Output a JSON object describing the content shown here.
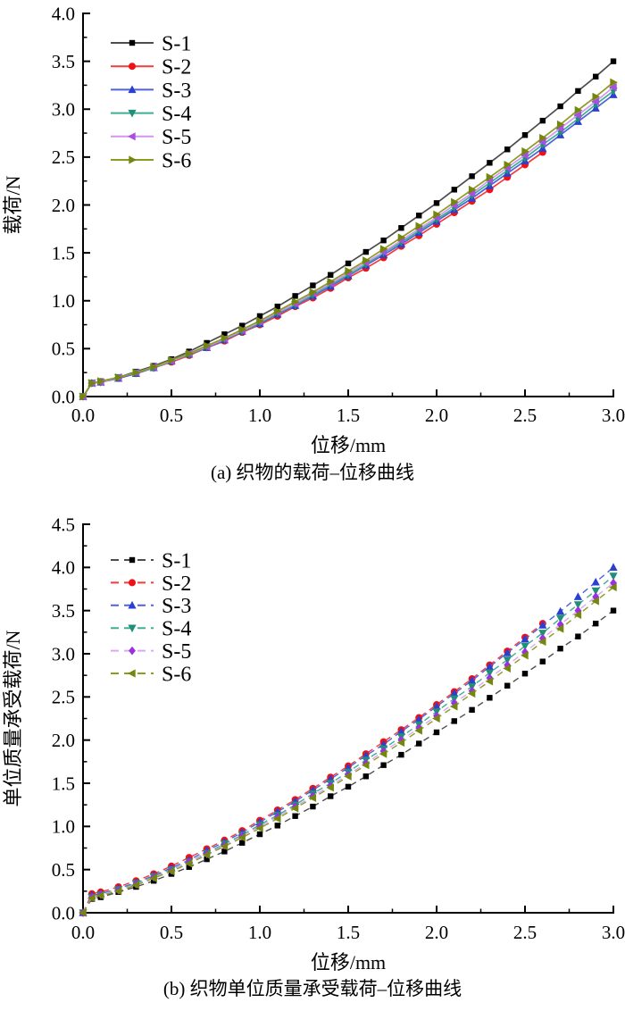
{
  "figure": {
    "background": "#ffffff"
  },
  "chart_data": [
    {
      "id": "a",
      "type": "line",
      "caption": "(a) 织物的载荷–位移曲线",
      "xlabel": "位移/mm",
      "ylabel": "载荷/N",
      "xlim": [
        0,
        3
      ],
      "ylim": [
        0,
        4
      ],
      "x_ticks": [
        0,
        0.5,
        1.0,
        1.5,
        2.0,
        2.5,
        3.0
      ],
      "x_tick_labels": [
        "0.0",
        "0.5",
        "1.0",
        "1.5",
        "2.0",
        "2.5",
        "3.0"
      ],
      "y_ticks": [
        0,
        0.5,
        1.0,
        1.5,
        2.0,
        2.5,
        3.0,
        3.5,
        4.0
      ],
      "y_tick_labels": [
        "0.0",
        "0.5",
        "1.0",
        "1.5",
        "2.0",
        "2.5",
        "3.0",
        "3.5",
        "4.0"
      ],
      "grid": false,
      "legend_position": "top-left",
      "line_style": "solid",
      "x": [
        0,
        0.05,
        0.1,
        0.2,
        0.3,
        0.4,
        0.5,
        0.6,
        0.7,
        0.8,
        0.9,
        1.0,
        1.1,
        1.2,
        1.3,
        1.4,
        1.5,
        1.6,
        1.7,
        1.8,
        1.9,
        2.0,
        2.1,
        2.2,
        2.3,
        2.4,
        2.5,
        2.6,
        2.7,
        2.8,
        2.9,
        3.0
      ],
      "series": [
        {
          "name": "S-1",
          "marker": "square",
          "line_color": "#4d4d4d",
          "marker_color": "#000000",
          "y": [
            0,
            0.14,
            0.16,
            0.2,
            0.26,
            0.32,
            0.39,
            0.47,
            0.56,
            0.65,
            0.74,
            0.84,
            0.94,
            1.05,
            1.16,
            1.27,
            1.39,
            1.51,
            1.63,
            1.76,
            1.89,
            2.02,
            2.16,
            2.3,
            2.44,
            2.58,
            2.73,
            2.88,
            3.03,
            3.19,
            3.34,
            3.5
          ]
        },
        {
          "name": "S-2",
          "marker": "circle",
          "line_color": "#f43b3b",
          "marker_color": "#ee1116",
          "y": [
            0,
            0.14,
            0.15,
            0.19,
            0.24,
            0.3,
            0.36,
            0.43,
            0.51,
            0.58,
            0.67,
            0.75,
            0.84,
            0.94,
            1.03,
            1.13,
            1.24,
            1.34,
            1.45,
            1.57,
            1.68,
            1.8,
            1.92,
            2.04,
            2.16,
            2.29,
            2.42,
            2.55
          ]
        },
        {
          "name": "S-3",
          "marker": "triangle-up",
          "line_color": "#4f62dd",
          "marker_color": "#2b3fd0",
          "y": [
            0,
            0.14,
            0.15,
            0.19,
            0.24,
            0.3,
            0.37,
            0.44,
            0.51,
            0.59,
            0.68,
            0.76,
            0.86,
            0.95,
            1.05,
            1.15,
            1.26,
            1.37,
            1.48,
            1.59,
            1.71,
            1.83,
            1.95,
            2.07,
            2.2,
            2.33,
            2.46,
            2.59,
            2.73,
            2.87,
            3.01,
            3.15
          ]
        },
        {
          "name": "S-4",
          "marker": "triangle-down",
          "line_color": "#3fae93",
          "marker_color": "#1f8f78",
          "y": [
            0,
            0.14,
            0.15,
            0.2,
            0.25,
            0.3,
            0.37,
            0.44,
            0.52,
            0.6,
            0.68,
            0.77,
            0.87,
            0.96,
            1.06,
            1.17,
            1.27,
            1.38,
            1.5,
            1.61,
            1.73,
            1.85,
            1.97,
            2.1,
            2.23,
            2.36,
            2.49,
            2.63,
            2.76,
            2.9,
            3.05,
            3.19
          ]
        },
        {
          "name": "S-5",
          "marker": "triangle-left",
          "line_color": "#d596ef",
          "marker_color": "#a94ee0",
          "y": [
            0,
            0.14,
            0.15,
            0.2,
            0.25,
            0.31,
            0.37,
            0.45,
            0.52,
            0.6,
            0.69,
            0.78,
            0.88,
            0.97,
            1.08,
            1.18,
            1.29,
            1.4,
            1.51,
            1.63,
            1.75,
            1.87,
            2.0,
            2.12,
            2.26,
            2.39,
            2.52,
            2.66,
            2.8,
            2.94,
            3.08,
            3.23
          ]
        },
        {
          "name": "S-6",
          "marker": "triangle-right",
          "line_color": "#8c9c22",
          "marker_color": "#75860e",
          "y": [
            0,
            0.14,
            0.16,
            0.2,
            0.25,
            0.31,
            0.38,
            0.45,
            0.53,
            0.61,
            0.7,
            0.79,
            0.89,
            0.99,
            1.09,
            1.2,
            1.31,
            1.42,
            1.54,
            1.66,
            1.78,
            1.9,
            2.03,
            2.16,
            2.29,
            2.42,
            2.56,
            2.7,
            2.84,
            2.99,
            3.13,
            3.28
          ]
        }
      ]
    },
    {
      "id": "b",
      "type": "line",
      "caption": "(b) 织物单位质量承受载荷–位移曲线",
      "xlabel": "位移/mm",
      "ylabel": "单位质量承受载荷/N",
      "xlim": [
        0,
        3
      ],
      "ylim": [
        0,
        4.5
      ],
      "x_ticks": [
        0,
        0.5,
        1.0,
        1.5,
        2.0,
        2.5,
        3.0
      ],
      "x_tick_labels": [
        "0.0",
        "0.5",
        "1.0",
        "1.5",
        "2.0",
        "2.5",
        "3.0"
      ],
      "y_ticks": [
        0,
        0.5,
        1.0,
        1.5,
        2.0,
        2.5,
        3.0,
        3.5,
        4.0,
        4.5
      ],
      "y_tick_labels": [
        "0.0",
        "0.5",
        "1.0",
        "1.5",
        "2.0",
        "2.5",
        "3.0",
        "3.5",
        "4.0",
        "4.5"
      ],
      "grid": false,
      "legend_position": "top-left",
      "line_style": "dashed",
      "x": [
        0,
        0.05,
        0.1,
        0.2,
        0.3,
        0.4,
        0.5,
        0.6,
        0.7,
        0.8,
        0.9,
        1.0,
        1.1,
        1.2,
        1.3,
        1.4,
        1.5,
        1.6,
        1.7,
        1.8,
        1.9,
        2.0,
        2.1,
        2.2,
        2.3,
        2.4,
        2.5,
        2.6,
        2.7,
        2.8,
        2.9,
        3.0
      ],
      "series": [
        {
          "name": "S-1",
          "marker": "square",
          "line_color": "#4d4d4d",
          "marker_color": "#000000",
          "y": [
            0,
            0.16,
            0.18,
            0.24,
            0.3,
            0.37,
            0.45,
            0.53,
            0.62,
            0.71,
            0.81,
            0.91,
            1.01,
            1.12,
            1.23,
            1.35,
            1.46,
            1.58,
            1.71,
            1.83,
            1.96,
            2.09,
            2.22,
            2.35,
            2.49,
            2.63,
            2.77,
            2.91,
            3.06,
            3.2,
            3.35,
            3.5
          ]
        },
        {
          "name": "S-2",
          "marker": "circle",
          "line_color": "#f43b3b",
          "marker_color": "#ee1116",
          "y": [
            0,
            0.22,
            0.24,
            0.3,
            0.37,
            0.45,
            0.54,
            0.64,
            0.74,
            0.84,
            0.95,
            1.07,
            1.19,
            1.31,
            1.44,
            1.57,
            1.7,
            1.84,
            1.98,
            2.12,
            2.26,
            2.41,
            2.56,
            2.71,
            2.87,
            3.03,
            3.19,
            3.35
          ]
        },
        {
          "name": "S-3",
          "marker": "triangle-up",
          "line_color": "#4f62dd",
          "marker_color": "#2b3fd0",
          "y": [
            0,
            0.2,
            0.22,
            0.28,
            0.35,
            0.43,
            0.52,
            0.61,
            0.72,
            0.82,
            0.93,
            1.05,
            1.17,
            1.29,
            1.42,
            1.55,
            1.68,
            1.82,
            1.95,
            2.1,
            2.24,
            2.39,
            2.54,
            2.69,
            2.85,
            3.01,
            3.17,
            3.33,
            3.49,
            3.66,
            3.83,
            4.0
          ]
        },
        {
          "name": "S-4",
          "marker": "triangle-down",
          "line_color": "#3fae93",
          "marker_color": "#1f8f78",
          "y": [
            0,
            0.18,
            0.21,
            0.27,
            0.34,
            0.42,
            0.5,
            0.59,
            0.69,
            0.8,
            0.9,
            1.02,
            1.13,
            1.25,
            1.38,
            1.5,
            1.63,
            1.77,
            1.9,
            2.04,
            2.18,
            2.33,
            2.48,
            2.62,
            2.78,
            2.93,
            3.09,
            3.24,
            3.41,
            3.57,
            3.73,
            3.9
          ]
        },
        {
          "name": "S-5",
          "marker": "diamond",
          "line_color": "#dca6f5",
          "marker_color": "#9c2fe0",
          "y": [
            0,
            0.18,
            0.21,
            0.26,
            0.33,
            0.41,
            0.49,
            0.59,
            0.68,
            0.78,
            0.89,
            1.0,
            1.11,
            1.23,
            1.35,
            1.47,
            1.6,
            1.73,
            1.87,
            2.0,
            2.14,
            2.28,
            2.43,
            2.57,
            2.72,
            2.87,
            3.02,
            3.18,
            3.34,
            3.5,
            3.66,
            3.82
          ]
        },
        {
          "name": "S-6",
          "marker": "triangle-left",
          "line_color": "#8c9c22",
          "marker_color": "#75860e",
          "y": [
            0,
            0.17,
            0.2,
            0.25,
            0.32,
            0.4,
            0.48,
            0.57,
            0.67,
            0.77,
            0.87,
            0.98,
            1.09,
            1.21,
            1.33,
            1.45,
            1.58,
            1.71,
            1.84,
            1.97,
            2.11,
            2.25,
            2.39,
            2.54,
            2.68,
            2.83,
            2.98,
            3.14,
            3.29,
            3.45,
            3.61,
            3.77
          ]
        }
      ]
    }
  ]
}
